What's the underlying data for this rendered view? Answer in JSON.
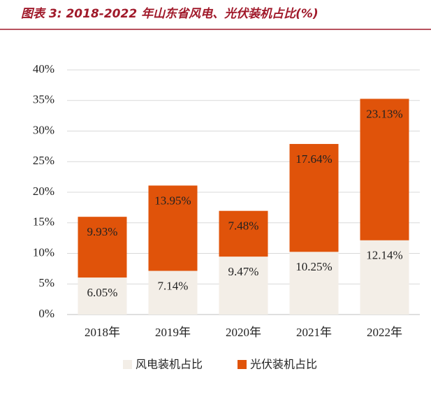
{
  "chart_data": {
    "type": "stacked_bar",
    "title": "图表 3: 2018-2022 年山东省风电、光伏装机占比(%)",
    "categories": [
      "2018年",
      "2019年",
      "2020年",
      "2021年",
      "2022年"
    ],
    "series": [
      {
        "name": "风电装机占比",
        "color": "#f3eee7",
        "values": [
          6.05,
          7.14,
          9.47,
          10.25,
          12.14
        ],
        "value_labels": [
          "6.05%",
          "7.14%",
          "9.47%",
          "10.25%",
          "12.14%"
        ]
      },
      {
        "name": "光伏装机占比",
        "color": "#e0530a",
        "values": [
          9.93,
          13.95,
          7.48,
          17.64,
          23.13
        ],
        "value_labels": [
          "9.93%",
          "13.95%",
          "7.48%",
          "17.64%",
          "23.13%"
        ]
      }
    ],
    "ylim": [
      0,
      40
    ],
    "yticks": [
      {
        "value": 0,
        "label": "0%"
      },
      {
        "value": 5,
        "label": "5%"
      },
      {
        "value": 10,
        "label": "10%"
      },
      {
        "value": 15,
        "label": "15%"
      },
      {
        "value": 20,
        "label": "20%"
      },
      {
        "value": 25,
        "label": "25%"
      },
      {
        "value": 30,
        "label": "30%"
      },
      {
        "value": 35,
        "label": "35%"
      },
      {
        "value": 40,
        "label": "40%"
      }
    ],
    "grid": true
  }
}
